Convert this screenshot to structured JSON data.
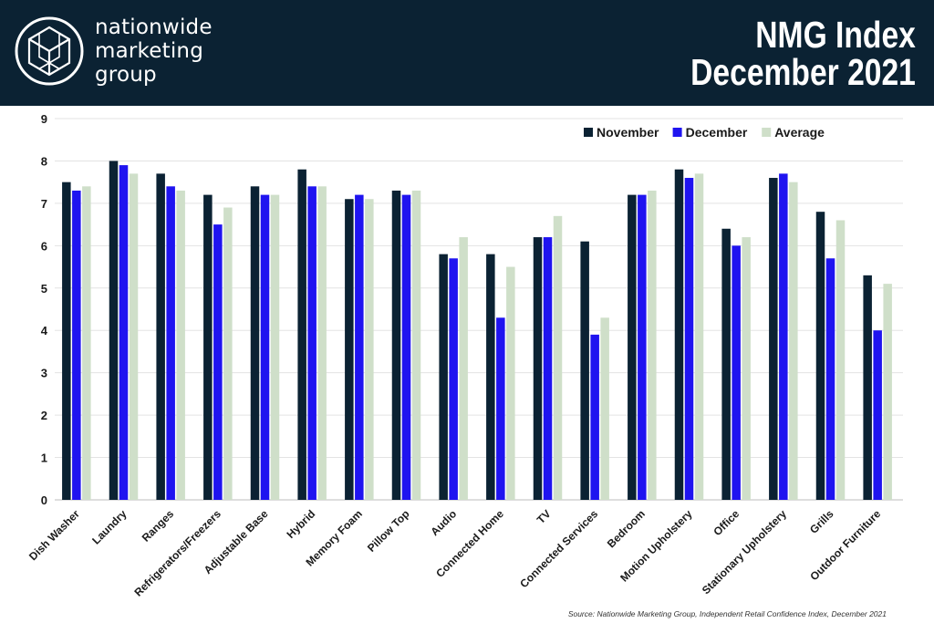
{
  "header": {
    "brand_lines": [
      "nationwide",
      "marketing",
      "group"
    ],
    "title_lines": [
      "NMG Index",
      "December 2021"
    ],
    "background": "#0b2233",
    "logo_icon": "hexagonal-cube-logo-icon"
  },
  "footer": {
    "source": "Source: Nationwide Marketing Group, Independent Retail Confidence Index, December 2021"
  },
  "chart_data": {
    "type": "bar",
    "categories": [
      "Dish Washer",
      "Laundry",
      "Ranges",
      "Refrigerators/Freezers",
      "Adjustable Base",
      "Hybrid",
      "Memory Foam",
      "Pillow Top",
      "Audio",
      "Connected Home",
      "TV",
      "Connected Services",
      "Bedroom",
      "Motion Upholstery",
      "Office",
      "Stationary Upholstery",
      "Grills",
      "Outdoor Furniture"
    ],
    "series": [
      {
        "name": "November",
        "color": "#0b2233",
        "values": [
          7.5,
          8.0,
          7.7,
          7.2,
          7.4,
          7.8,
          7.1,
          7.3,
          5.8,
          5.8,
          6.2,
          6.1,
          7.2,
          7.8,
          6.4,
          7.6,
          6.8,
          5.3
        ]
      },
      {
        "name": "December",
        "color": "#1f14f0",
        "values": [
          7.3,
          7.9,
          7.4,
          6.5,
          7.2,
          7.4,
          7.2,
          7.2,
          5.7,
          4.3,
          6.2,
          3.9,
          7.2,
          7.6,
          6.0,
          7.7,
          5.7,
          4.0
        ]
      },
      {
        "name": "Average",
        "color": "#cfdfc9",
        "values": [
          7.4,
          7.7,
          7.3,
          6.9,
          7.2,
          7.4,
          7.1,
          7.3,
          6.2,
          5.5,
          6.7,
          4.3,
          7.3,
          7.7,
          6.2,
          7.5,
          6.6,
          5.1
        ]
      }
    ],
    "yticks": [
      "0",
      "1",
      "2",
      "3",
      "4",
      "5",
      "6",
      "7",
      "8",
      "9"
    ],
    "ylim": [
      0,
      9
    ],
    "grid": true,
    "legend_position": "top-right",
    "title": "",
    "xlabel": "",
    "ylabel": ""
  }
}
